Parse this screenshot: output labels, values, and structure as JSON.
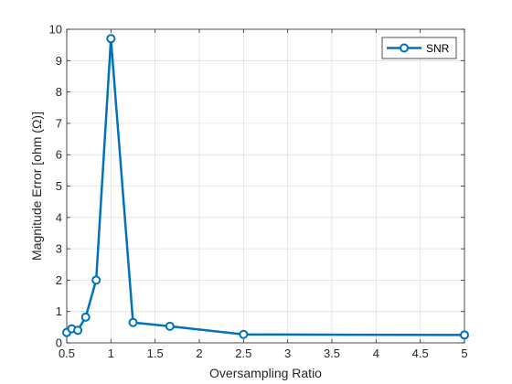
{
  "chart_data": {
    "type": "line",
    "title": "",
    "xlabel": "Oversampling Ratio",
    "ylabel": "Magnitude Error [ohm (Ω)]",
    "xlim": [
      0.5,
      5
    ],
    "ylim": [
      0,
      10
    ],
    "xticks": [
      0.5,
      1,
      1.5,
      2,
      2.5,
      3,
      3.5,
      4,
      4.5,
      5
    ],
    "xtick_labels": [
      "0.5",
      "1",
      "1.5",
      "2",
      "2.5",
      "3",
      "3.5",
      "4",
      "4.5",
      "5"
    ],
    "yticks": [
      0,
      1,
      2,
      3,
      4,
      5,
      6,
      7,
      8,
      9,
      10
    ],
    "ytick_labels": [
      "0",
      "1",
      "2",
      "3",
      "4",
      "5",
      "6",
      "7",
      "8",
      "9",
      "10"
    ],
    "grid": true,
    "legend_position": "top-right",
    "series": [
      {
        "name": "SNR",
        "color": "#0072BD",
        "marker": "circle",
        "x": [
          0.5,
          0.556,
          0.625,
          0.714,
          0.833,
          1.0,
          1.25,
          1.667,
          2.5,
          5.0
        ],
        "y": [
          0.33,
          0.45,
          0.4,
          0.82,
          2.0,
          9.7,
          0.65,
          0.53,
          0.27,
          0.25
        ]
      }
    ]
  }
}
